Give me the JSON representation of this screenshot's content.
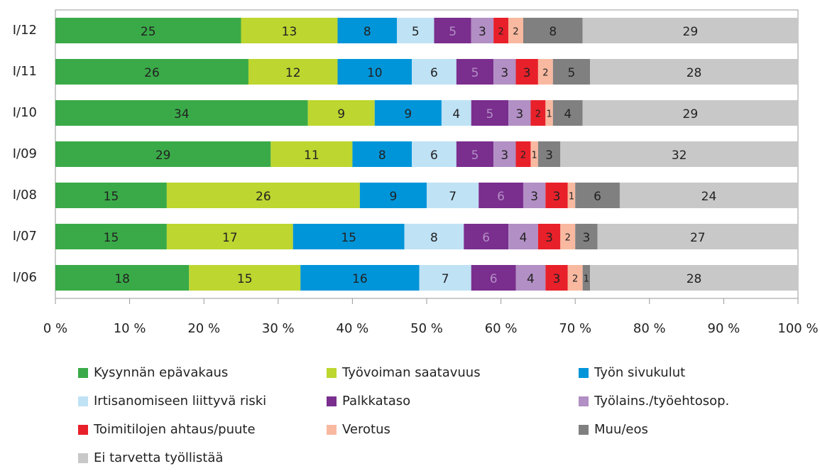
{
  "chart_data": {
    "type": "stacked_barh",
    "categories": [
      "I/12",
      "I/11",
      "I/10",
      "I/09",
      "I/08",
      "I/07",
      "I/06"
    ],
    "series": [
      {
        "name": "Kysynnän epävakaus",
        "color": "#3aaa48",
        "label_color": "#222222",
        "values": [
          25,
          26,
          34,
          29,
          15,
          15,
          18
        ]
      },
      {
        "name": "Työvoiman saatavuus",
        "color": "#bdd630",
        "label_color": "#222222",
        "values": [
          13,
          12,
          9,
          11,
          26,
          17,
          15
        ]
      },
      {
        "name": "Työn sivukulut",
        "color": "#0095d9",
        "label_color": "#222222",
        "values": [
          8,
          10,
          9,
          8,
          9,
          15,
          16
        ]
      },
      {
        "name": "Irtisanomiseen liittyvä riski",
        "color": "#bfe2f5",
        "label_color": "#222222",
        "values": [
          5,
          6,
          4,
          6,
          7,
          8,
          7
        ]
      },
      {
        "name": "Palkkataso",
        "color": "#7a2e8e",
        "label_color": "#b28fc4",
        "values": [
          5,
          5,
          5,
          5,
          6,
          6,
          6
        ]
      },
      {
        "name": "Työlains./työehtosop.",
        "color": "#b28fc4",
        "label_color": "#222222",
        "values": [
          3,
          3,
          3,
          3,
          3,
          4,
          4
        ]
      },
      {
        "name": "Toimitilojen ahtaus/puute",
        "color": "#e8202a",
        "label_color": "#222222",
        "values": [
          2,
          3,
          2,
          2,
          3,
          3,
          3
        ]
      },
      {
        "name": "Verotus",
        "color": "#f8b9a0",
        "label_color": "#222222",
        "values": [
          2,
          2,
          1,
          1,
          1,
          2,
          2
        ]
      },
      {
        "name": "Muu/eos",
        "color": "#808080",
        "label_color": "#222222",
        "values": [
          8,
          5,
          4,
          3,
          6,
          3,
          1
        ]
      },
      {
        "name": "Ei tarvetta työllistää",
        "color": "#c8c8c8",
        "label_color": "#222222",
        "values": [
          29,
          28,
          29,
          32,
          24,
          27,
          28
        ]
      }
    ],
    "xlim": [
      0,
      100
    ],
    "xticks": [
      {
        "value": 0,
        "label": "0 %"
      },
      {
        "value": 10,
        "label": "10 %"
      },
      {
        "value": 20,
        "label": "20 %"
      },
      {
        "value": 30,
        "label": "30 %"
      },
      {
        "value": 40,
        "label": "40 %"
      },
      {
        "value": 50,
        "label": "50 %"
      },
      {
        "value": 60,
        "label": "60 %"
      },
      {
        "value": 70,
        "label": "70 %"
      },
      {
        "value": 80,
        "label": "80 %"
      },
      {
        "value": 90,
        "label": "90 %"
      },
      {
        "value": 100,
        "label": "100 %"
      }
    ]
  }
}
